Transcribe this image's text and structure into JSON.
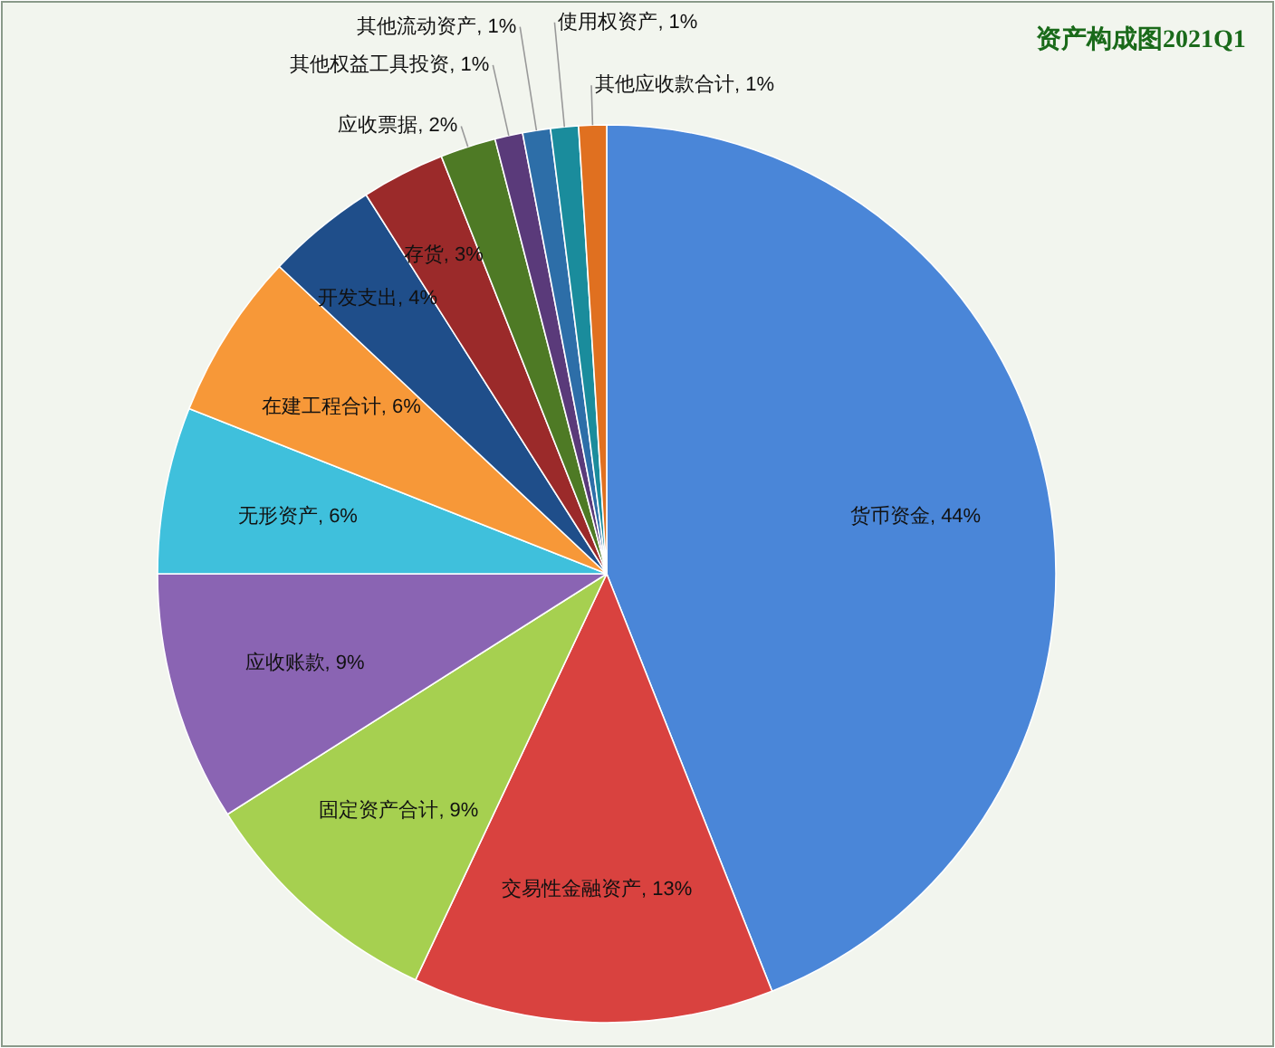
{
  "chart_data": {
    "type": "pie",
    "title": "资产构成图2021Q1",
    "categories": [
      "货币资金",
      "交易性金融资产",
      "固定资产合计",
      "应收账款",
      "无形资产",
      "在建工程合计",
      "开发支出",
      "存货",
      "应收票据",
      "其他权益工具投资",
      "其他流动资产",
      "使用权资产",
      "其他应收款合计"
    ],
    "values": [
      44,
      13,
      9,
      9,
      6,
      6,
      4,
      3,
      2,
      1,
      1,
      1,
      1
    ],
    "value_labels": [
      "44%",
      "13%",
      "9%",
      "9%",
      "6%",
      "6%",
      "4%",
      "3%",
      "2%",
      "1%",
      "1%",
      "1%",
      "1%"
    ],
    "colors": [
      "#4a86d8",
      "#d9423f",
      "#a6d050",
      "#8a64b3",
      "#3fc0dc",
      "#f79838",
      "#1f4e8a",
      "#9b2a2a",
      "#4e7a25",
      "#5a3a7a",
      "#2d6ea8",
      "#1a8c9c",
      "#e07020"
    ]
  }
}
